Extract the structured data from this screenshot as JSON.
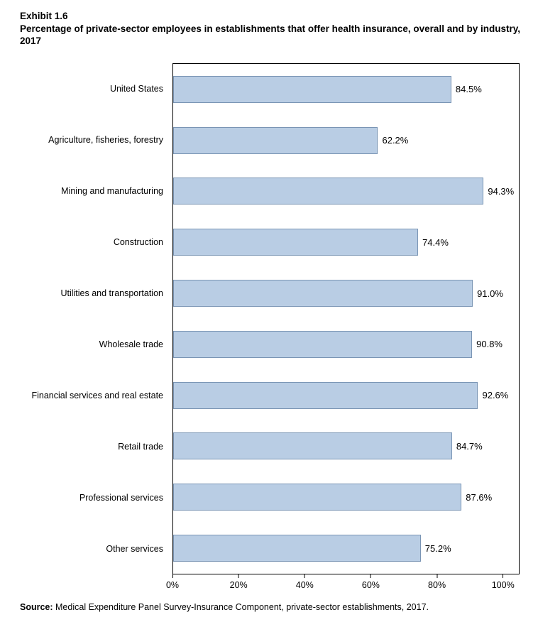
{
  "header": {
    "exhibit": "Exhibit 1.6",
    "title": "Percentage of private-sector employees in establishments that offer health insurance, overall and by industry, 2017"
  },
  "chart_data": {
    "type": "bar",
    "orientation": "horizontal",
    "title": "Percentage of private-sector employees in establishments that offer health insurance, overall and by industry, 2017",
    "categories": [
      "United States",
      "Agriculture, fisheries, forestry",
      "Mining and manufacturing",
      "Construction",
      "Utilities and transportation",
      "Wholesale trade",
      "Financial services and real estate",
      "Retail trade",
      "Professional services",
      "Other services"
    ],
    "values": [
      84.5,
      62.2,
      94.3,
      74.4,
      91.0,
      90.8,
      92.6,
      84.7,
      87.6,
      75.2
    ],
    "value_labels": [
      "84.5%",
      "62.2%",
      "94.3%",
      "74.4%",
      "91.0%",
      "90.8%",
      "92.6%",
      "84.7%",
      "87.6%",
      "75.2%"
    ],
    "x_ticks": [
      0,
      20,
      40,
      60,
      80,
      100
    ],
    "x_tick_labels": [
      "0%",
      "20%",
      "40%",
      "60%",
      "80%",
      "100%"
    ],
    "xlim": [
      0,
      105
    ],
    "grid": false,
    "legend": false,
    "bar_fill": "#b9cde4",
    "bar_border": "#7a95b4"
  },
  "source": {
    "label": "Source:",
    "text": " Medical Expenditure Panel Survey-Insurance Component, private-sector establishments, 2017."
  }
}
